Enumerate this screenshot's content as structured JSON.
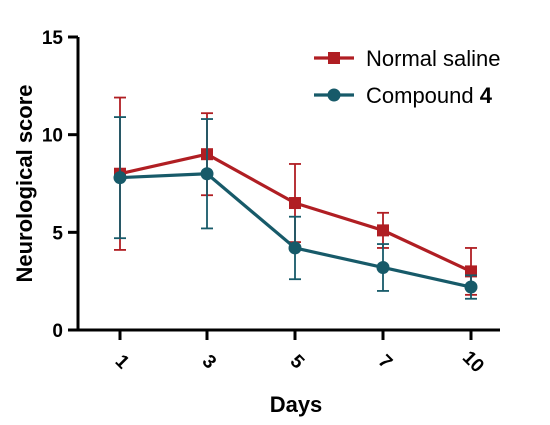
{
  "chart_data": {
    "type": "line",
    "xlabel": "Days",
    "ylabel": "Neurological score",
    "categories": [
      "1",
      "3",
      "5",
      "7",
      "10"
    ],
    "ylim": [
      0,
      15
    ],
    "yticks": [
      0,
      5,
      10,
      15
    ],
    "grid": false,
    "legend_position": "top-right",
    "series": [
      {
        "name": "Normal saline",
        "name_parts": [
          "Normal saline",
          ""
        ],
        "color": "#b01e23",
        "marker": "square",
        "values": [
          8.0,
          9.0,
          6.5,
          5.1,
          3.0
        ],
        "error": [
          3.9,
          2.1,
          2.0,
          0.9,
          1.2
        ]
      },
      {
        "name": "Compound 4",
        "name_parts": [
          "Compound ",
          "4"
        ],
        "color": "#175a69",
        "marker": "circle",
        "values": [
          7.8,
          8.0,
          4.2,
          3.2,
          2.2
        ],
        "error": [
          3.1,
          2.8,
          1.6,
          1.2,
          0.6
        ]
      }
    ]
  }
}
